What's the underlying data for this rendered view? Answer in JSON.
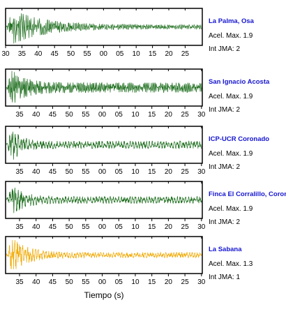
{
  "chart_data": {
    "type": "line",
    "xlabel": "Tiempo (s)",
    "panels": [
      {
        "station": "La Palma, Osa",
        "accel_label": "Acel. Max. 1.9",
        "jma_label": "Int JMA: 2",
        "color": "#1e6e1e",
        "tick_labels": [
          "30",
          "35",
          "40",
          "45",
          "50",
          "55",
          "00",
          "05",
          "10",
          "15",
          "20",
          "25"
        ],
        "peak": 1.0,
        "noise_level": 0.12,
        "decay": 0.16,
        "cycles": 120,
        "seed": 3
      },
      {
        "station": "San Ignacio Acosta",
        "accel_label": "Acel. Max. 1.9",
        "jma_label": "Int JMA: 2",
        "color": "#1e6e1e",
        "tick_labels": [
          "35",
          "40",
          "45",
          "50",
          "55",
          "00",
          "05",
          "10",
          "15",
          "20",
          "25",
          "30"
        ],
        "peak": 1.0,
        "noise_level": 0.28,
        "decay": 0.07,
        "cycles": 150,
        "seed": 11
      },
      {
        "station": "ICP-UCR Coronado",
        "accel_label": "Acel. Max. 1.9",
        "jma_label": "Int JMA: 2",
        "color": "#1e6e1e",
        "tick_labels": [
          "35",
          "40",
          "45",
          "50",
          "55",
          "00",
          "05",
          "10",
          "15",
          "20",
          "25",
          "30"
        ],
        "peak": 0.95,
        "noise_level": 0.22,
        "decay": 0.05,
        "cycles": 70,
        "seed": 23
      },
      {
        "station": "Finca El Corralillo, Corona",
        "accel_label": "Acel. Max. 1.9",
        "jma_label": "Int JMA: 2",
        "color": "#1e6e1e",
        "tick_labels": [
          "35",
          "40",
          "45",
          "50",
          "55",
          "00",
          "05",
          "10",
          "15",
          "20",
          "25",
          "30"
        ],
        "peak": 0.95,
        "noise_level": 0.2,
        "decay": 0.06,
        "cycles": 70,
        "seed": 37
      },
      {
        "station": "La Sabana",
        "accel_label": "Acel. Max. 1.3",
        "jma_label": "Int JMA: 1",
        "color": "#f0a800",
        "tick_labels": [
          "35",
          "40",
          "45",
          "50",
          "55",
          "00",
          "05",
          "10",
          "15",
          "20",
          "25",
          "30"
        ],
        "peak": 1.0,
        "noise_level": 0.15,
        "decay": 0.08,
        "cycles": 75,
        "seed": 51
      }
    ]
  }
}
